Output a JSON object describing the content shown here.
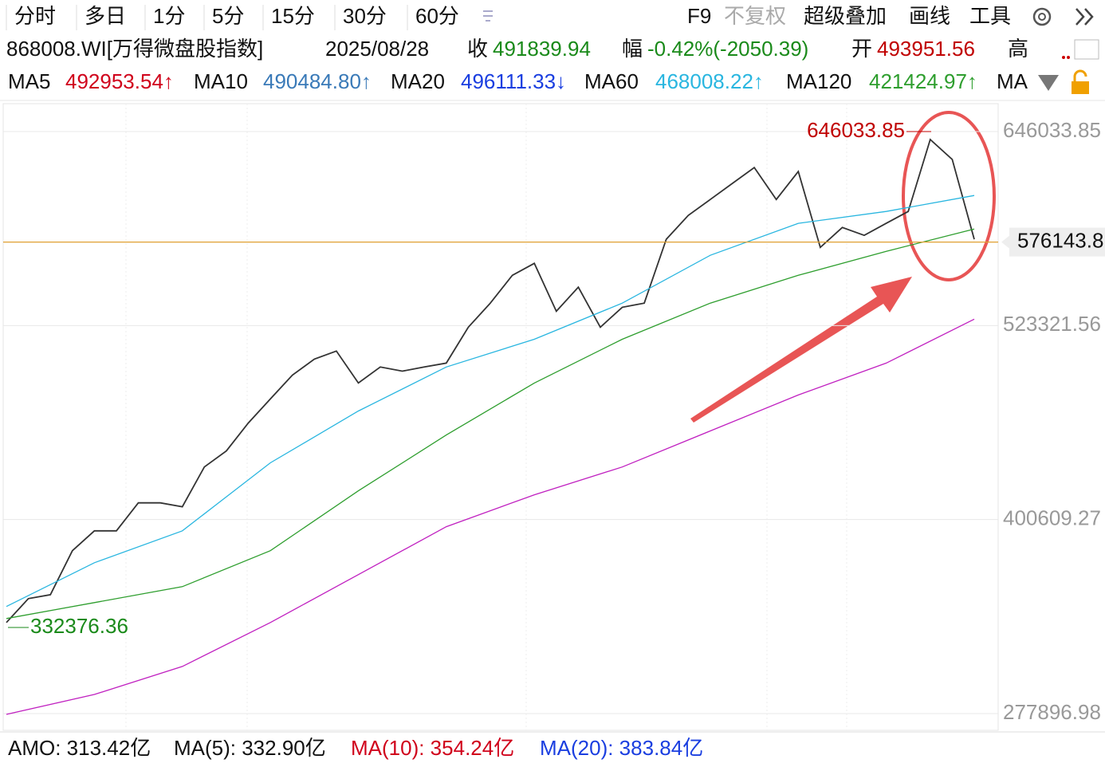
{
  "toolbar": {
    "tabs": [
      "分时",
      "多日",
      "1分",
      "5分",
      "15分",
      "30分",
      "60分"
    ],
    "tools": [
      "F9",
      "不复权",
      "超级叠加",
      "画线",
      "工具"
    ]
  },
  "header": {
    "code": "868008.WI[万得微盘股指数]",
    "date": "2025/08/28",
    "close_label": "收",
    "close": "491839.94",
    "change_label": "幅",
    "change": "-0.42%(-2050.39)",
    "open_label": "开",
    "open": "493951.56",
    "high_label": "高"
  },
  "ma_row": [
    {
      "name": "MA5",
      "value": "492953.54↑",
      "color": "#d0021b"
    },
    {
      "name": "MA10",
      "value": "490484.80↑",
      "color": "#3a7ab8"
    },
    {
      "name": "MA20",
      "value": "496111.33↓",
      "color": "#1a3ee0"
    },
    {
      "name": "MA60",
      "value": "468008.22↑",
      "color": "#29b6e0"
    },
    {
      "name": "MA120",
      "value": "421424.97↑",
      "color": "#2e9e2e"
    },
    {
      "name": "MA"
    }
  ],
  "chart": {
    "type": "line",
    "xlim": [
      0,
      44
    ],
    "ylim": [
      267800,
      666230
    ],
    "yticks": [
      646033.85,
      523321.56,
      400609.27,
      277896.98
    ],
    "grid": true,
    "high": 646033.85,
    "low": 332376.36,
    "last_price": 576143.8,
    "series": [
      {
        "color": "#333333",
        "x": [
          0,
          1,
          2,
          3,
          4,
          5,
          6,
          7,
          8,
          9,
          10,
          11,
          12,
          13,
          14,
          15,
          16,
          17,
          18,
          19,
          20,
          21,
          22,
          23,
          24,
          25,
          26,
          27,
          28,
          29,
          30,
          31,
          32,
          33,
          34,
          35,
          36,
          37,
          38,
          39,
          40,
          41,
          42,
          43,
          44
        ],
        "values": [
          335500,
          350600,
          353100,
          380900,
          393500,
          393500,
          411200,
          411200,
          408700,
          433900,
          444000,
          461700,
          476900,
          492000,
          502100,
          507200,
          487000,
          497100,
          494500,
          497100,
          499600,
          522300,
          537500,
          555100,
          562700,
          532400,
          547600,
          522300,
          534900,
          537500,
          577900,
          593000,
          603100,
          613200,
          623300,
          603100,
          620800,
          572800,
          585400,
          580400,
          588000,
          595500,
          641000,
          628400,
          577900
        ]
      },
      {
        "color": "#29b6e0",
        "x": [
          0,
          4,
          8,
          12,
          16,
          20,
          24,
          28,
          32,
          36,
          40,
          44
        ],
        "values": [
          345600,
          373300,
          393500,
          436500,
          469300,
          497100,
          514700,
          537500,
          567800,
          588000,
          595500,
          605600
        ]
      },
      {
        "color": "#2e9e2e",
        "x": [
          0,
          4,
          8,
          12,
          16,
          20,
          24,
          28,
          32,
          36,
          40,
          44
        ],
        "values": [
          338000,
          348100,
          358200,
          380900,
          418800,
          454100,
          487000,
          514700,
          537500,
          555100,
          570300,
          584400
        ]
      },
      {
        "color": "#c020c0",
        "x": [
          0,
          4,
          8,
          12,
          16,
          20,
          24,
          28,
          32,
          36,
          40,
          44
        ],
        "values": [
          277400,
          290000,
          307700,
          335500,
          365800,
          396100,
          416300,
          433900,
          456700,
          479400,
          499600,
          527400
        ]
      }
    ]
  },
  "volume": [
    {
      "label": "AMO: 313.42亿",
      "color": "#111111"
    },
    {
      "label": "MA(5): 332.90亿",
      "color": "#111111"
    },
    {
      "label": "MA(10): 354.24亿",
      "color": "#d0021b"
    },
    {
      "label": "MA(20): 383.84亿",
      "color": "#1a3ee0"
    }
  ]
}
